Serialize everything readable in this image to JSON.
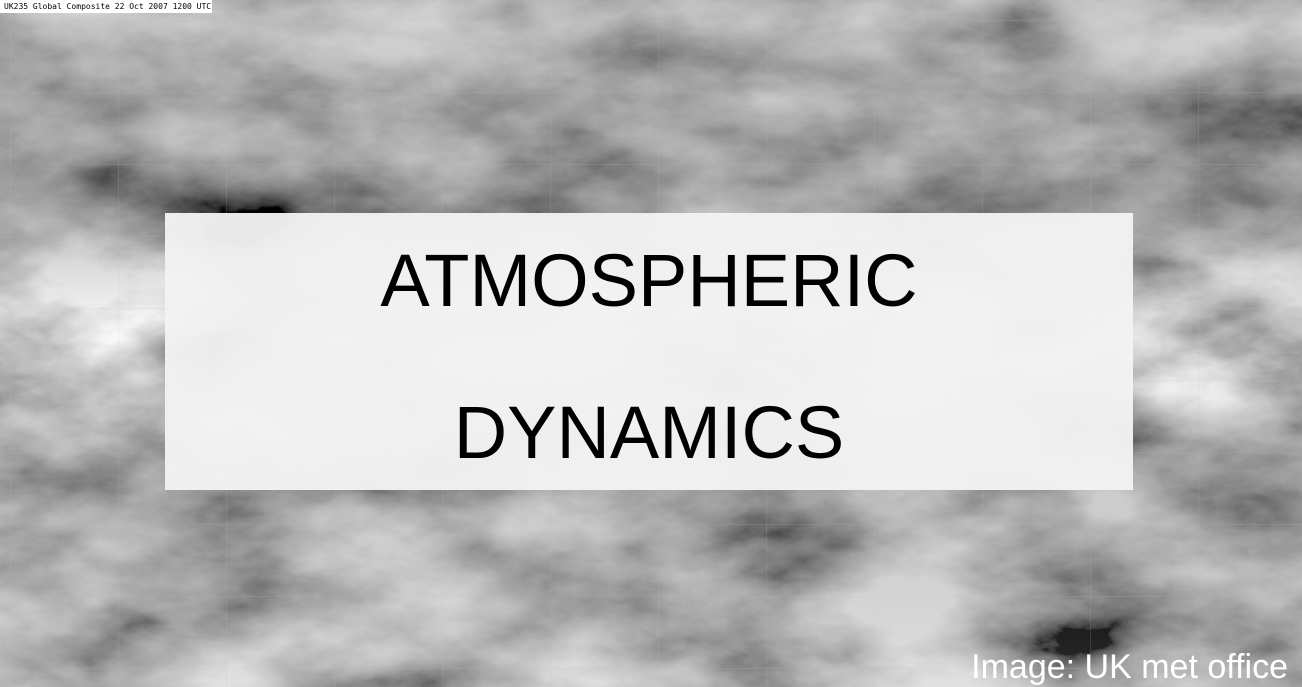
{
  "image_caption": "UK235 Global Composite 22 Oct 2007 1200 UTC",
  "title": {
    "line1": "ATMOSPHERIC",
    "line2": "DYNAMICS"
  },
  "credit": "Image: UK met office"
}
